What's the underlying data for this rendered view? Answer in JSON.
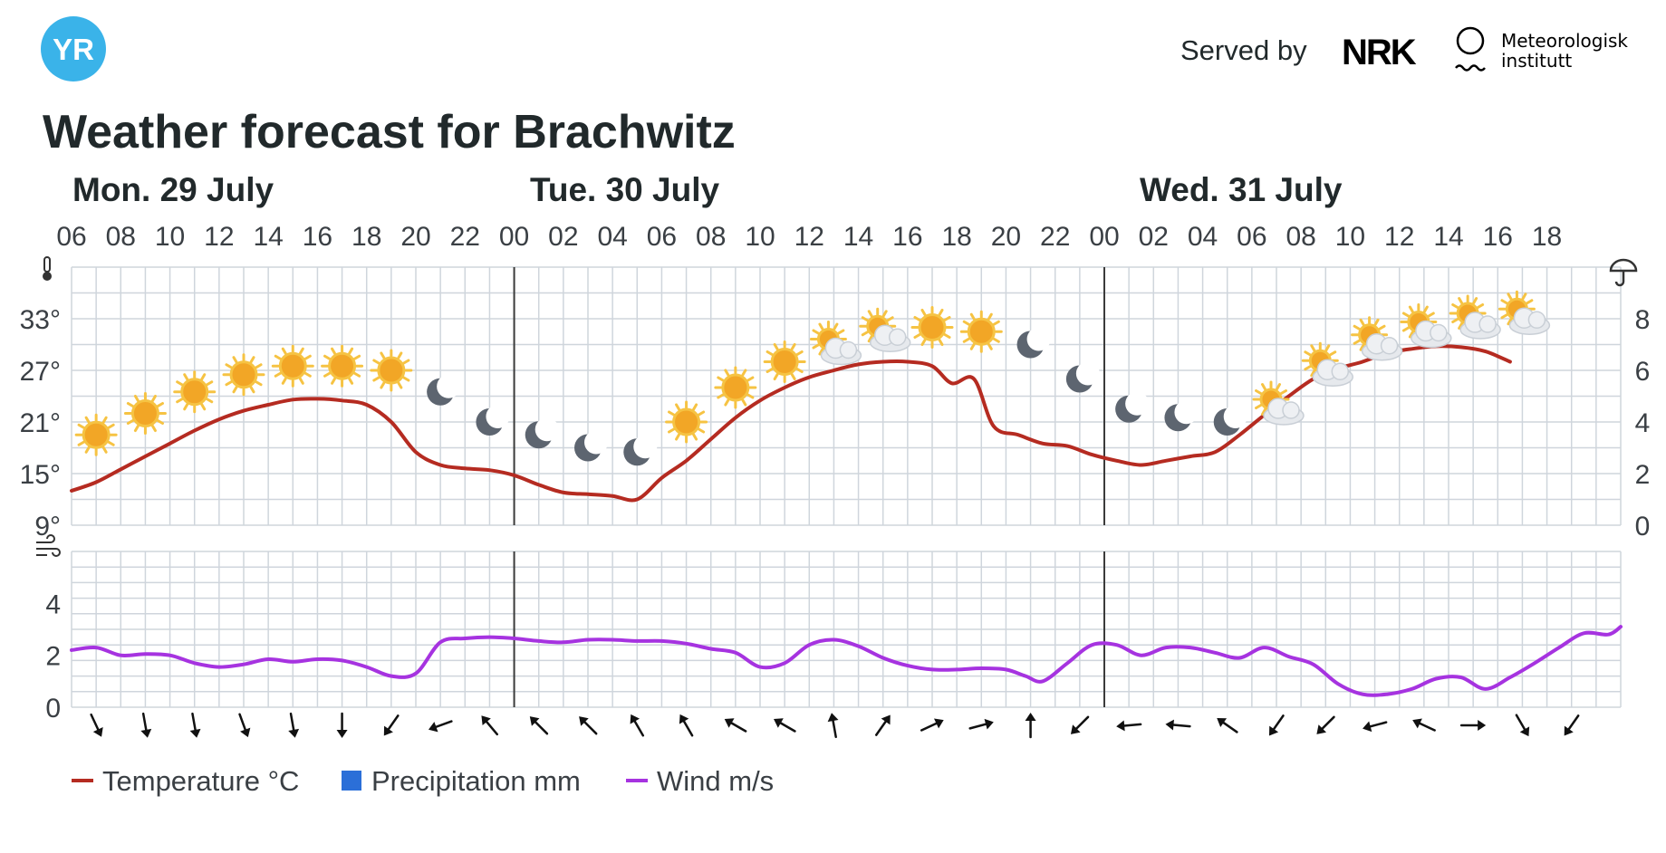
{
  "header": {
    "logo_text": "YR",
    "served_by": "Served by",
    "partner_nrk": "NRK",
    "partner_met_line1": "Meteorologisk",
    "partner_met_line2": "institutt"
  },
  "title": "Weather forecast for Brachwitz",
  "days": [
    {
      "label": "Mon. 29 July",
      "hour_index": 0
    },
    {
      "label": "Tue. 30 July",
      "hour_index": 9
    },
    {
      "label": "Wed. 31 July",
      "hour_index": 21
    }
  ],
  "hour_labels": [
    "06",
    "08",
    "10",
    "12",
    "14",
    "16",
    "18",
    "20",
    "22",
    "00",
    "02",
    "04",
    "06",
    "08",
    "10",
    "12",
    "14",
    "16",
    "18",
    "20",
    "22",
    "00",
    "02",
    "04",
    "06",
    "08",
    "10",
    "12",
    "14",
    "16",
    "18"
  ],
  "legend": [
    {
      "label": "Temperature °C",
      "swatch": "line",
      "color": "#b52b21"
    },
    {
      "label": "Precipitation mm",
      "swatch": "box",
      "color": "#2b6fd8"
    },
    {
      "label": "Wind m/s",
      "swatch": "line",
      "color": "#a633e0"
    }
  ],
  "colors": {
    "temperature": "#b52b21",
    "wind": "#a633e0",
    "precipitation": "#2b6fd8",
    "grid": "#cfd5dc",
    "day_divider": "#3b3b3b",
    "logo_bg": "#3ab3e9",
    "text": "#21292b",
    "axis_text": "#3a3f44"
  },
  "chart_data": {
    "type": "line",
    "x_unit": "hour",
    "x_start": "Mon. 29 July 06",
    "temperature": {
      "name": "Temperature °C",
      "y_ticks": [
        "9°",
        "15°",
        "21°",
        "27°",
        "33°"
      ],
      "ylim": [
        9,
        39
      ],
      "values": [
        [
          0,
          13
        ],
        [
          1,
          14
        ],
        [
          2,
          15.5
        ],
        [
          3,
          17
        ],
        [
          4,
          18.5
        ],
        [
          5,
          20
        ],
        [
          6,
          21.3
        ],
        [
          7,
          22.3
        ],
        [
          8,
          23
        ],
        [
          9,
          23.6
        ],
        [
          10,
          23.7
        ],
        [
          11,
          23.5
        ],
        [
          12,
          23
        ],
        [
          13,
          21
        ],
        [
          14,
          17.5
        ],
        [
          15,
          16
        ],
        [
          16,
          15.6
        ],
        [
          17,
          15.4
        ],
        [
          18,
          14.8
        ],
        [
          19,
          13.7
        ],
        [
          20,
          12.8
        ],
        [
          21,
          12.6
        ],
        [
          22,
          12.4
        ],
        [
          23,
          12
        ],
        [
          24,
          14.5
        ],
        [
          25,
          16.5
        ],
        [
          26,
          19
        ],
        [
          27,
          21.5
        ],
        [
          28,
          23.5
        ],
        [
          29,
          25
        ],
        [
          30,
          26.2
        ],
        [
          31,
          27
        ],
        [
          32,
          27.7
        ],
        [
          33,
          28
        ],
        [
          34,
          28
        ],
        [
          35,
          27.5
        ],
        [
          35.8,
          25.5
        ],
        [
          36.7,
          26
        ],
        [
          37.5,
          20.5
        ],
        [
          38.5,
          19.5
        ],
        [
          39.5,
          18.5
        ],
        [
          40.5,
          18.2
        ],
        [
          41.5,
          17.2
        ],
        [
          42.5,
          16.5
        ],
        [
          43.5,
          16
        ],
        [
          44.5,
          16.5
        ],
        [
          45.5,
          17
        ],
        [
          46.5,
          17.5
        ],
        [
          47.5,
          19.5
        ],
        [
          48.5,
          21.8
        ],
        [
          49.5,
          24
        ],
        [
          50.5,
          26
        ],
        [
          51.5,
          27.2
        ],
        [
          52.5,
          28
        ],
        [
          53.5,
          29
        ],
        [
          54.5,
          29.5
        ],
        [
          55.5,
          29.8
        ],
        [
          56.5,
          29.7
        ],
        [
          57.5,
          29.2
        ],
        [
          58.5,
          28
        ]
      ]
    },
    "precipitation": {
      "name": "Precipitation mm",
      "y_ticks": [
        "0",
        "2",
        "4",
        "6",
        "8"
      ],
      "ylim": [
        0,
        10
      ],
      "values": []
    },
    "wind": {
      "name": "Wind m/s",
      "y_ticks": [
        "0",
        "2",
        "4"
      ],
      "ylim": [
        0,
        6
      ],
      "values": [
        [
          0,
          2.2
        ],
        [
          1,
          2.3
        ],
        [
          2,
          2.0
        ],
        [
          3,
          2.05
        ],
        [
          4,
          2.0
        ],
        [
          5,
          1.7
        ],
        [
          6,
          1.55
        ],
        [
          7,
          1.65
        ],
        [
          8,
          1.85
        ],
        [
          9,
          1.75
        ],
        [
          10,
          1.85
        ],
        [
          11,
          1.8
        ],
        [
          12,
          1.55
        ],
        [
          13,
          1.2
        ],
        [
          14,
          1.3
        ],
        [
          15,
          2.5
        ],
        [
          16,
          2.65
        ],
        [
          17,
          2.7
        ],
        [
          18,
          2.65
        ],
        [
          19,
          2.55
        ],
        [
          20,
          2.5
        ],
        [
          21,
          2.6
        ],
        [
          22,
          2.6
        ],
        [
          23,
          2.55
        ],
        [
          24,
          2.55
        ],
        [
          25,
          2.45
        ],
        [
          26,
          2.25
        ],
        [
          27,
          2.1
        ],
        [
          28,
          1.55
        ],
        [
          29,
          1.7
        ],
        [
          30,
          2.4
        ],
        [
          31,
          2.6
        ],
        [
          32,
          2.35
        ],
        [
          33,
          1.9
        ],
        [
          34,
          1.6
        ],
        [
          35,
          1.45
        ],
        [
          36,
          1.45
        ],
        [
          37,
          1.5
        ],
        [
          38,
          1.45
        ],
        [
          38.8,
          1.2
        ],
        [
          39.5,
          1.0
        ],
        [
          40.5,
          1.7
        ],
        [
          41.5,
          2.4
        ],
        [
          42.5,
          2.4
        ],
        [
          43.5,
          2.0
        ],
        [
          44.5,
          2.3
        ],
        [
          45.5,
          2.3
        ],
        [
          46.5,
          2.1
        ],
        [
          47.5,
          1.9
        ],
        [
          48.5,
          2.3
        ],
        [
          49.5,
          1.95
        ],
        [
          50.5,
          1.65
        ],
        [
          51.5,
          0.9
        ],
        [
          52.5,
          0.5
        ],
        [
          53.5,
          0.5
        ],
        [
          54.5,
          0.7
        ],
        [
          55.5,
          1.1
        ],
        [
          56.5,
          1.15
        ],
        [
          57.5,
          0.7
        ],
        [
          58.5,
          1.15
        ],
        [
          59.5,
          1.7
        ],
        [
          60.5,
          2.3
        ],
        [
          61.5,
          2.85
        ],
        [
          62.5,
          2.8
        ],
        [
          63,
          3.1
        ]
      ]
    },
    "symbols": [
      {
        "hour": 1,
        "type": "sun",
        "temp": 19.5
      },
      {
        "hour": 3,
        "type": "sun",
        "temp": 22
      },
      {
        "hour": 5,
        "type": "sun",
        "temp": 24.5
      },
      {
        "hour": 7,
        "type": "sun",
        "temp": 26.5
      },
      {
        "hour": 9,
        "type": "sun",
        "temp": 27.5
      },
      {
        "hour": 11,
        "type": "sun",
        "temp": 27.5
      },
      {
        "hour": 13,
        "type": "sun",
        "temp": 27
      },
      {
        "hour": 15,
        "type": "moon",
        "temp": 24.5
      },
      {
        "hour": 17,
        "type": "moon",
        "temp": 21
      },
      {
        "hour": 19,
        "type": "moon",
        "temp": 19.5
      },
      {
        "hour": 21,
        "type": "moon",
        "temp": 18
      },
      {
        "hour": 23,
        "type": "moon",
        "temp": 17.5
      },
      {
        "hour": 25,
        "type": "sun",
        "temp": 21
      },
      {
        "hour": 27,
        "type": "sun",
        "temp": 25
      },
      {
        "hour": 29,
        "type": "sun",
        "temp": 28
      },
      {
        "hour": 31,
        "type": "partly-cloudy",
        "temp": 30
      },
      {
        "hour": 33,
        "type": "partly-cloudy",
        "temp": 31.5
      },
      {
        "hour": 35,
        "type": "sun",
        "temp": 32
      },
      {
        "hour": 37,
        "type": "sun",
        "temp": 31.5
      },
      {
        "hour": 39,
        "type": "moon",
        "temp": 30
      },
      {
        "hour": 41,
        "type": "moon",
        "temp": 26
      },
      {
        "hour": 43,
        "type": "moon",
        "temp": 22.5
      },
      {
        "hour": 45,
        "type": "moon",
        "temp": 21.5
      },
      {
        "hour": 47,
        "type": "moon",
        "temp": 21
      },
      {
        "hour": 49,
        "type": "partly-cloudy",
        "temp": 23
      },
      {
        "hour": 51,
        "type": "partly-cloudy",
        "temp": 27.5
      },
      {
        "hour": 53,
        "type": "partly-cloudy",
        "temp": 30.5
      },
      {
        "hour": 55,
        "type": "partly-cloudy",
        "temp": 32
      },
      {
        "hour": 57,
        "type": "partly-cloudy",
        "temp": 33
      },
      {
        "hour": 59,
        "type": "partly-cloudy",
        "temp": 33.5
      }
    ],
    "wind_direction_arrows": [
      {
        "hour": 1,
        "rot": 155
      },
      {
        "hour": 3,
        "rot": 170
      },
      {
        "hour": 5,
        "rot": 170
      },
      {
        "hour": 7,
        "rot": 160
      },
      {
        "hour": 9,
        "rot": 170
      },
      {
        "hour": 11,
        "rot": 180
      },
      {
        "hour": 13,
        "rot": 215
      },
      {
        "hour": 15,
        "rot": 250
      },
      {
        "hour": 17,
        "rot": 320
      },
      {
        "hour": 19,
        "rot": 315
      },
      {
        "hour": 21,
        "rot": 315
      },
      {
        "hour": 23,
        "rot": 330
      },
      {
        "hour": 25,
        "rot": 330
      },
      {
        "hour": 27,
        "rot": 300
      },
      {
        "hour": 29,
        "rot": 300
      },
      {
        "hour": 31,
        "rot": 350
      },
      {
        "hour": 33,
        "rot": 35
      },
      {
        "hour": 35,
        "rot": 65
      },
      {
        "hour": 37,
        "rot": 75
      },
      {
        "hour": 39,
        "rot": 0
      },
      {
        "hour": 41,
        "rot": 225
      },
      {
        "hour": 43,
        "rot": 265
      },
      {
        "hour": 45,
        "rot": 275
      },
      {
        "hour": 47,
        "rot": 305
      },
      {
        "hour": 49,
        "rot": 215
      },
      {
        "hour": 51,
        "rot": 225
      },
      {
        "hour": 53,
        "rot": 255
      },
      {
        "hour": 55,
        "rot": 295
      },
      {
        "hour": 57,
        "rot": 90
      },
      {
        "hour": 59,
        "rot": 150
      },
      {
        "hour": 61,
        "rot": 215
      }
    ]
  }
}
